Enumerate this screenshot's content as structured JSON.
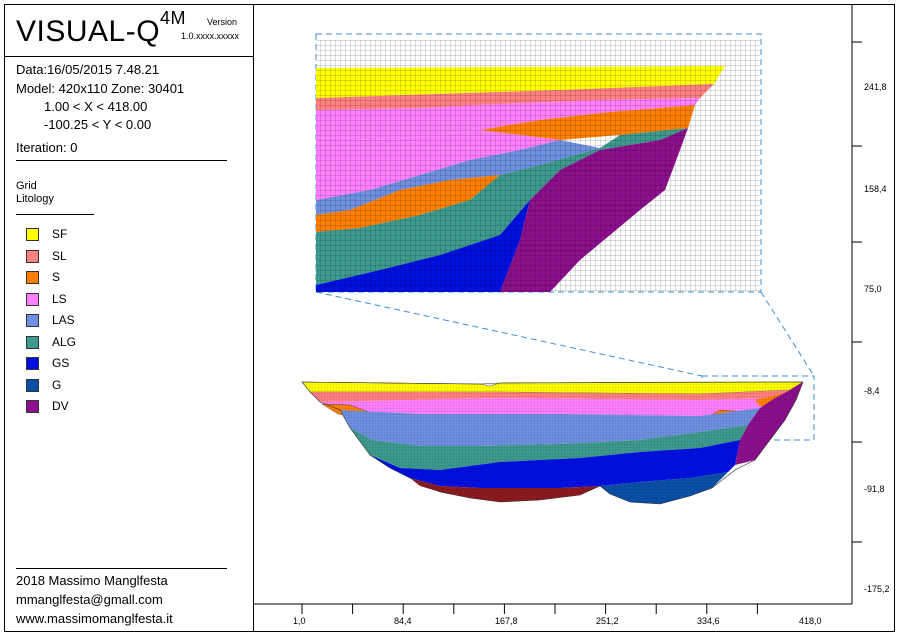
{
  "app": {
    "title": "VISUAL-Q",
    "superscript": "4M",
    "version_label": "Version",
    "version": "1.0.xxxx.xxxxx"
  },
  "info": {
    "date": "Data:16/05/2015 7.48.21",
    "model": "Model: 420x110   Zone: 30401",
    "x_range": "1.00 < X < 418.00",
    "y_range": "-100.25 < Y < 0.00",
    "iteration": "Iteration: 0"
  },
  "layers": {
    "grid": "Grid",
    "litology": "Litology"
  },
  "legend": [
    {
      "label": "SF",
      "color": "#ffff00"
    },
    {
      "label": "SL",
      "color": "#ff8080"
    },
    {
      "label": "S",
      "color": "#ff8000"
    },
    {
      "label": "LS",
      "color": "#ff80ff"
    },
    {
      "label": "LAS",
      "color": "#6f8fe0"
    },
    {
      "label": "ALG",
      "color": "#3d9a8e"
    },
    {
      "label": "GS",
      "color": "#0010e0"
    },
    {
      "label": "G",
      "color": "#0a4fa8"
    },
    {
      "label": "DV",
      "color": "#8c0f8c"
    }
  ],
  "footer": {
    "author": "2018 Massimo Manglfesta",
    "email": "mmanglfesta@gmall.com",
    "website": "www.massimomanglfesta.it"
  },
  "y_axis": {
    "ticks": [
      "241,8",
      "158,4",
      "75,0",
      "-8,4",
      "-91,8",
      "-175,2"
    ]
  },
  "x_axis": {
    "ticks": [
      "1,0",
      "84,4",
      "167,8",
      "251,2",
      "334,6",
      "418,0"
    ]
  }
}
